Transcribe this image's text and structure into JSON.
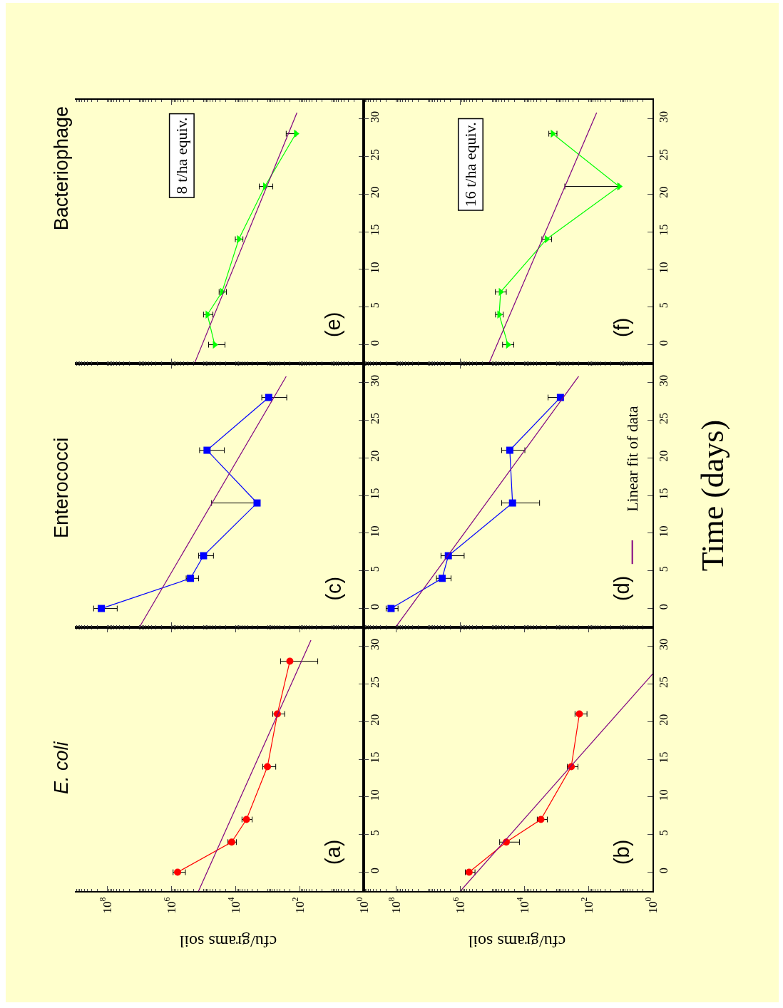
{
  "chart_data": [
    {
      "type": "line",
      "title": "E. coli",
      "xlabel": "cfu/grams soil",
      "annotations": [
        "(a)"
      ],
      "ylim": [
        -2.5,
        32.5
      ],
      "yticks": [
        0,
        5,
        10,
        15,
        20,
        25,
        30
      ],
      "xlim": [
        1000000000,
        1
      ],
      "xticks": [
        {
          "value": 1,
          "label": "10$^{0}$"
        },
        {
          "value": 100,
          "label": "10$^{2}$"
        },
        {
          "value": 10000,
          "label": "10$^{4}$"
        },
        {
          "value": 1000000,
          "label": "10$^{6}$"
        },
        {
          "value": 100000000,
          "label": "10$^{8}$"
        }
      ],
      "log": "x",
      "series": [
        {
          "color": "#ff0000",
          "marker": "circle",
          "x": [
            630000,
            13000,
            4500,
            1000,
            490,
            200
          ],
          "values": [
            0,
            4,
            7,
            14,
            21,
            28
          ],
          "xerrors": [
            [
              360000,
              870000
            ],
            [
              9300,
              17000
            ],
            [
              3000,
              6200
            ],
            [
              550,
              1400
            ],
            [
              290,
              680
            ],
            [
              27,
              390
            ]
          ]
        },
        {
          "color": "#800080",
          "marker": "none",
          "x": [
            140000,
            44
          ],
          "values": [
            -2.5,
            30.8
          ]
        }
      ]
    },
    {
      "type": "line",
      "title": "Enterococci",
      "annotations": [
        "(c)"
      ],
      "ylim": [
        -2.5,
        32.5
      ],
      "yticks": [
        0,
        5,
        10,
        15,
        20,
        25,
        30
      ],
      "xlim": [
        1000000000,
        1
      ],
      "xticks": [
        {
          "value": 1,
          "label": null
        },
        {
          "value": 100,
          "label": null
        },
        {
          "value": 10000,
          "label": null
        },
        {
          "value": 1000000,
          "label": null
        },
        {
          "value": 100000000,
          "label": null
        }
      ],
      "log": "x",
      "tick_labels": "y",
      "series": [
        {
          "color": "#0000ff",
          "marker": "square",
          "x": [
            150000000,
            250000,
            98000,
            2100,
            76000,
            910
          ],
          "values": [
            0,
            4,
            7,
            14,
            21,
            28
          ],
          "xerrors": [
            [
              48000000,
              260000000
            ],
            [
              140000,
              340000
            ],
            [
              48000,
              140000
            ],
            [
              2100,
              55000
            ],
            [
              22000,
              130000
            ],
            [
              250,
              1500
            ]
          ]
        },
        {
          "color": "#800080",
          "marker": "none",
          "x": [
            9500000,
            260
          ],
          "values": [
            -2.4,
            30.8
          ]
        }
      ]
    },
    {
      "type": "line",
      "title": "Bacteriophage",
      "annotations": [
        "(e)",
        "8 t/ha equiv."
      ],
      "ylim": [
        -2.5,
        32.5
      ],
      "yticks": [
        0,
        5,
        10,
        15,
        20,
        25,
        30
      ],
      "xlim": [
        1000000000,
        1
      ],
      "xticks": [
        {
          "value": 1,
          "label": null
        },
        {
          "value": 100,
          "label": null
        },
        {
          "value": 10000,
          "label": null
        },
        {
          "value": 1000000,
          "label": null
        },
        {
          "value": 100000000,
          "label": null
        }
      ],
      "log": "x",
      "tick_labels": "y",
      "series": [
        {
          "color": "#00ff00",
          "marker": "triangle",
          "x": [
            44000,
            74000,
            26000,
            7800,
            1200,
            130
          ],
          "values": [
            0,
            4,
            7,
            14,
            21,
            28
          ],
          "xerrors": [
            [
              21000,
              68000
            ],
            [
              50000,
              98000
            ],
            [
              19000,
              32000
            ],
            [
              5800,
              10000
            ],
            [
              680,
              1800
            ],
            [
              130,
              260
            ]
          ]
        },
        {
          "color": "#800080",
          "marker": "none",
          "x": [
            180000,
            120
          ],
          "values": [
            -2.3,
            30.8
          ]
        }
      ]
    },
    {
      "type": "line",
      "xlabel": "cfu/grams soil",
      "annotations": [
        "(b)"
      ],
      "ylim": [
        -2.5,
        32.5
      ],
      "yticks": [
        0,
        5,
        10,
        15,
        20,
        25,
        30
      ],
      "xlim": [
        1000000000,
        1
      ],
      "xticks": [
        {
          "value": 1,
          "label": "10$^{0}$"
        },
        {
          "value": 100,
          "label": "10$^{2}$"
        },
        {
          "value": 10000,
          "label": "10$^{4}$"
        },
        {
          "value": 1000000,
          "label": "10$^{6}$"
        },
        {
          "value": 100000000,
          "label": "10$^{8}$"
        }
      ],
      "log": "x",
      "series": [
        {
          "color": "#ff0000",
          "marker": "circle",
          "x": [
            520000,
            36000,
            3000,
            340,
            190
          ],
          "values": [
            0,
            4,
            7,
            14,
            21
          ],
          "xerrors": [
            [
              340000,
              680000
            ],
            [
              14000,
              58000
            ],
            [
              1900,
              3900
            ],
            [
              210,
              450
            ],
            [
              110,
              260
            ]
          ]
        },
        {
          "color": "#800080",
          "marker": "none",
          "x": [
            970000,
            1
          ],
          "values": [
            -2.5,
            26.3
          ]
        }
      ]
    },
    {
      "type": "line",
      "ylabel": "Time (days)",
      "annotations": [
        "(d)"
      ],
      "legend": "right",
      "ylim": [
        -2.5,
        32.5
      ],
      "yticks": [
        0,
        5,
        10,
        15,
        20,
        25,
        30
      ],
      "xlim": [
        1000000000,
        1
      ],
      "xticks": [
        {
          "value": 1,
          "label": null
        },
        {
          "value": 100,
          "label": null
        },
        {
          "value": 10000,
          "label": null
        },
        {
          "value": 1000000,
          "label": null
        },
        {
          "value": 100000000,
          "label": null
        }
      ],
      "log": "x",
      "tick_labels": "y",
      "series": [
        {
          "color": "#0000ff",
          "marker": "square",
          "x": [
            140000000,
            3600000,
            2300000,
            23000,
            28000,
            740
          ],
          "values": [
            0,
            4,
            7,
            14,
            21,
            28
          ],
          "xerrors": [
            [
              85000000,
              200000000
            ],
            [
              1900000,
              5400000
            ],
            [
              740000,
              3900000
            ],
            [
              3300,
              50000
            ],
            [
              9500,
              50000
            ],
            [
              740,
              1800
            ]
          ]
        },
        {
          "name": "Linear fit of data",
          "color": "#800080",
          "marker": "none",
          "x": [
            98000000,
            200
          ],
          "values": [
            -2.4,
            30.8
          ]
        }
      ]
    },
    {
      "type": "line",
      "annotations": [
        "(f)",
        "16 t/ha equiv."
      ],
      "ylim": [
        -2.5,
        32.5
      ],
      "yticks": [
        0,
        5,
        10,
        15,
        20,
        25,
        30
      ],
      "xlim": [
        1000000000,
        1
      ],
      "xticks": [
        {
          "value": 1,
          "label": null
        },
        {
          "value": 100,
          "label": null
        },
        {
          "value": 10000,
          "label": null
        },
        {
          "value": 1000000,
          "label": null
        },
        {
          "value": 100000000,
          "label": null
        }
      ],
      "log": "x",
      "tick_labels": "y",
      "series": [
        {
          "color": "#00ff00",
          "marker": "triangle",
          "x": [
            32000,
            60000,
            54000,
            2000,
            11,
            1300
          ],
          "values": [
            0,
            4,
            7,
            14,
            21,
            28
          ],
          "xerrors": [
            [
              21000,
              47000
            ],
            [
              45000,
              78000
            ],
            [
              36000,
              79000
            ],
            [
              1400,
              2800
            ],
            [
              11,
              540
            ],
            [
              950,
              1700
            ]
          ]
        },
        {
          "color": "#800080",
          "marker": "none",
          "x": [
            120000,
            55
          ],
          "values": [
            -2.3,
            30.8
          ]
        }
      ]
    }
  ]
}
